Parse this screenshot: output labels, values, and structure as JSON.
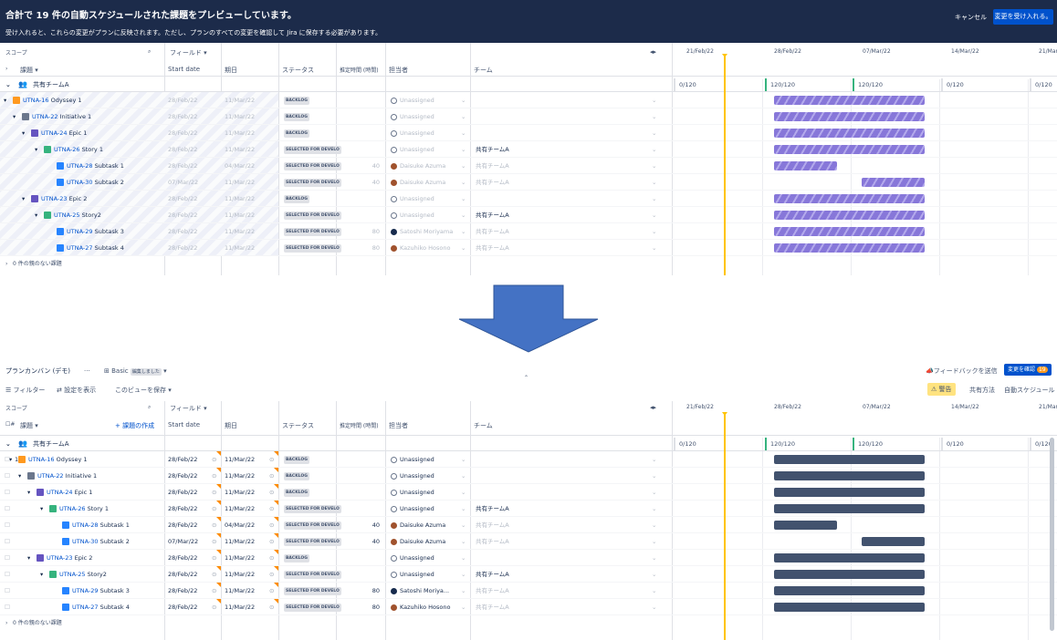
{
  "banner": {
    "title": "合計で 19 件の自動スケジュールされた課題をプレビューしています。",
    "subtitle": "受け入れると、これらの変更がプランに反映されます。ただし、プランのすべての変更を確認して Jira に保存する必要があります。",
    "cancel": "キャンセル",
    "accept": "変更を受け入れる。"
  },
  "toolbar": {
    "plan_name": "プランカンバン (デモ)",
    "more": "···",
    "view_name": "Basic",
    "view_badge": "編集しました",
    "feedback": "フィードバックを送信",
    "review_changes": "変更を確認",
    "review_count": "19",
    "filter": "フィルター",
    "show_settings": "設定を表示",
    "save_view": "このビューを保存",
    "warning": "警告",
    "share": "共有方法",
    "auto_schedule": "自動スケジュール"
  },
  "columns": {
    "scope": "スコープ",
    "fields": "フィールド",
    "issue": "課題",
    "create_issue": "+ 課題の作成",
    "start": "Start date",
    "due": "期日",
    "status": "ステータス",
    "estimate": "推定時間 (時間)",
    "assignee": "担当者",
    "team": "チーム"
  },
  "timeline": {
    "dates": [
      "21/Feb/22",
      "28/Feb/22",
      "07/Mar/22",
      "14/Mar/22",
      "21/Mar/22"
    ],
    "caps": [
      "0/120",
      "120/120",
      "120/120",
      "0/120",
      "0/120"
    ]
  },
  "group": "共有チームA",
  "footer": "0 件の親のない課題",
  "rows": [
    {
      "num": "1",
      "key": "UTNA-16",
      "name": "Odyssey 1",
      "icon": "ody",
      "start": "28/Feb/22",
      "due": "11/Mar/22",
      "status": "BACKLOG",
      "est": "",
      "assignee": "Unassigned",
      "team": "",
      "bar": [
        0,
        1
      ]
    },
    {
      "num": "",
      "key": "UTNA-22",
      "name": "Initiative 1",
      "icon": "init",
      "start": "28/Feb/22",
      "due": "11/Mar/22",
      "status": "BACKLOG",
      "est": "",
      "assignee": "Unassigned",
      "team": "",
      "bar": [
        0,
        1
      ]
    },
    {
      "num": "",
      "key": "UTNA-24",
      "name": "Epic 1",
      "icon": "epic",
      "start": "28/Feb/22",
      "due": "11/Mar/22",
      "status": "BACKLOG",
      "est": "",
      "assignee": "Unassigned",
      "team": "",
      "bar": [
        0,
        1
      ]
    },
    {
      "num": "",
      "key": "UTNA-26",
      "name": "Story 1",
      "icon": "story",
      "start": "28/Feb/22",
      "due": "11/Mar/22",
      "status": "SELECTED FOR DEVELO",
      "est": "",
      "assignee": "Unassigned",
      "team": "共有チームA",
      "bar": [
        0,
        1
      ]
    },
    {
      "num": "",
      "key": "UTNA-28",
      "name": "Subtask 1",
      "icon": "sub",
      "start": "28/Feb/22",
      "due": "04/Mar/22",
      "status": "SELECTED FOR DEVELO",
      "est": "40",
      "assignee": "Daisuke Azuma",
      "team": "共有チームA",
      "bar": [
        0,
        0.42
      ]
    },
    {
      "num": "",
      "key": "UTNA-30",
      "name": "Subtask 2",
      "icon": "sub",
      "start": "07/Mar/22",
      "due": "11/Mar/22",
      "status": "SELECTED FOR DEVELO",
      "est": "40",
      "assignee": "Daisuke Azuma",
      "team": "共有チームA",
      "bar": [
        0.58,
        1
      ]
    },
    {
      "num": "",
      "key": "UTNA-23",
      "name": "Epic 2",
      "icon": "epic",
      "start": "28/Feb/22",
      "due": "11/Mar/22",
      "status": "BACKLOG",
      "est": "",
      "assignee": "Unassigned",
      "team": "",
      "bar": [
        0,
        1
      ]
    },
    {
      "num": "",
      "key": "UTNA-25",
      "name": "Story2",
      "icon": "story",
      "start": "28/Feb/22",
      "due": "11/Mar/22",
      "status": "SELECTED FOR DEVELO",
      "est": "",
      "assignee": "Unassigned",
      "team": "共有チームA",
      "bar": [
        0,
        1
      ]
    },
    {
      "num": "",
      "key": "UTNA-29",
      "name": "Subtask 3",
      "icon": "sub",
      "start": "28/Feb/22",
      "due": "11/Mar/22",
      "status": "SELECTED FOR DEVELO",
      "est": "80",
      "assignee": "Satoshi Moriyama",
      "assignee_short": "Satoshi Moriya...",
      "team": "共有チームA",
      "bar": [
        0,
        1
      ]
    },
    {
      "num": "",
      "key": "UTNA-27",
      "name": "Subtask 4",
      "icon": "sub",
      "start": "28/Feb/22",
      "due": "11/Mar/22",
      "status": "SELECTED FOR DEVELO",
      "est": "80",
      "assignee": "Kazuhiko Hosono",
      "team": "共有チームA",
      "bar": [
        0,
        1
      ]
    }
  ],
  "colors": {
    "banner": "#1c2b4a",
    "accent": "#0052cc",
    "hatch": "#8777d9",
    "solid_bar": "#42526e",
    "today": "#ffc400",
    "arrow": "#4472c4"
  }
}
